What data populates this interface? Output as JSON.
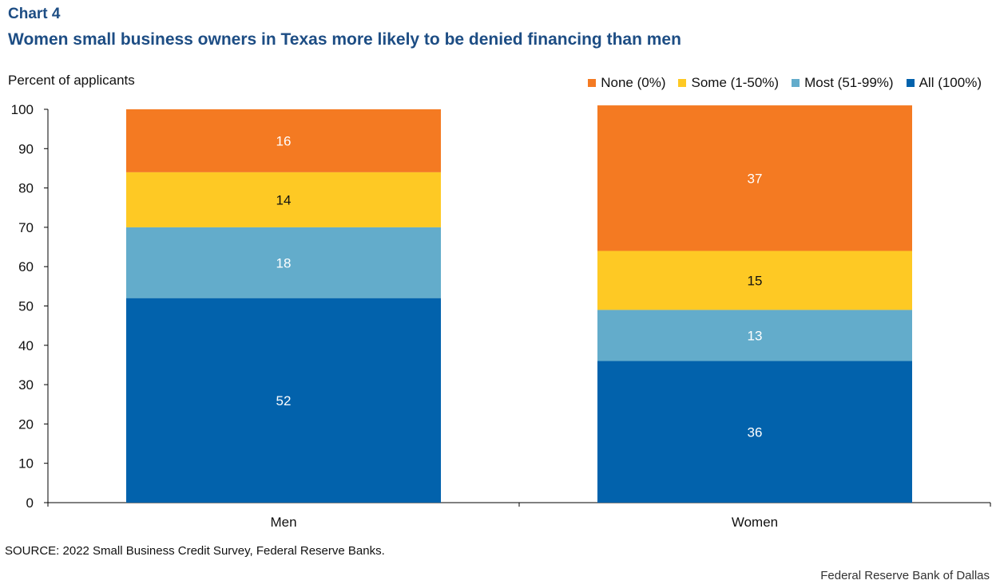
{
  "header": {
    "chart_number": "Chart 4",
    "title": "Women small business owners in Texas more likely to be denied financing than men"
  },
  "footer": {
    "source": "SOURCE: 2022 Small Business Credit Survey, Federal Reserve Banks.",
    "credit": "Federal Reserve Bank of Dallas"
  },
  "chart_data": {
    "type": "bar",
    "stacked": true,
    "title": "Women small business owners in Texas more likely to be denied financing than men",
    "xlabel": "",
    "ylabel": "Percent of applicants",
    "ylim": [
      0,
      100
    ],
    "yticks": [
      0,
      10,
      20,
      30,
      40,
      50,
      60,
      70,
      80,
      90,
      100
    ],
    "categories": [
      "Men",
      "Women"
    ],
    "legend_position": "top-right",
    "series": [
      {
        "name": "All (100%)",
        "color": "#0262ac",
        "label_color": "#ffffff",
        "values": [
          52,
          36
        ]
      },
      {
        "name": "Most (51-99%)",
        "color": "#63accb",
        "label_color": "#ffffff",
        "values": [
          18,
          13
        ]
      },
      {
        "name": "Some (1-50%)",
        "color": "#fec924",
        "label_color": "#111111",
        "values": [
          14,
          15
        ]
      },
      {
        "name": "None (0%)",
        "color": "#f47a22",
        "label_color": "#ffffff",
        "values": [
          16,
          37
        ]
      }
    ],
    "legend_order": [
      "None (0%)",
      "Some (1-50%)",
      "Most (51-99%)",
      "All (100%)"
    ]
  }
}
